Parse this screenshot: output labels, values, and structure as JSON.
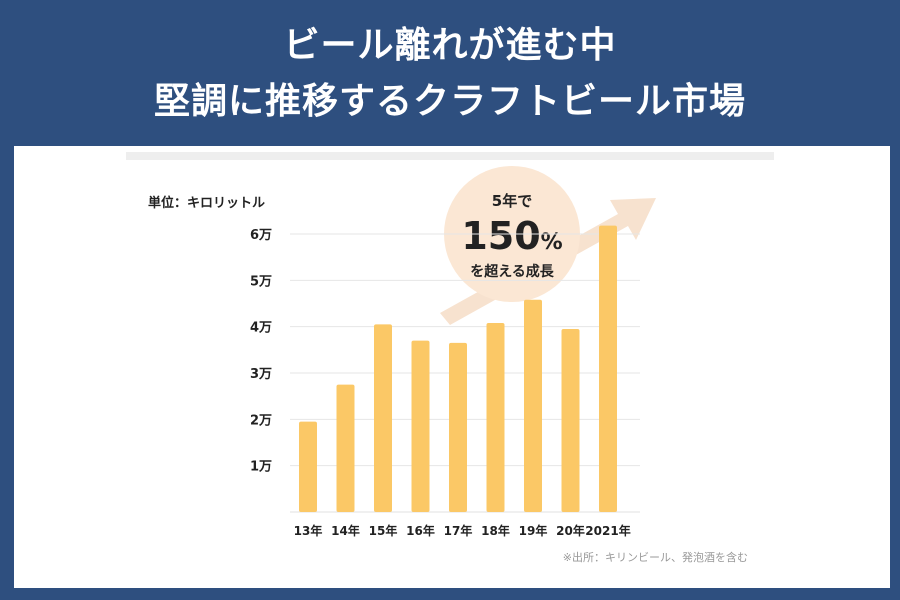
{
  "header": {
    "title_line1": "ビール離れが進む中",
    "title_line2": "堅調に推移するクラフトビール市場"
  },
  "colors": {
    "background": "#2e4f7f",
    "bar": "#fbc866",
    "arrow": "#f7e2cf",
    "bubble": "#fbe7d4",
    "text": "#222222"
  },
  "chart_data": {
    "type": "bar",
    "unit_label": "単位：キロリットル",
    "categories": [
      "13年",
      "14年",
      "15年",
      "16年",
      "17年",
      "18年",
      "19年",
      "20年",
      "2021年"
    ],
    "values": [
      19500,
      27500,
      40500,
      37000,
      36500,
      40800,
      45800,
      39500,
      61800
    ],
    "ylim": [
      0,
      65000
    ],
    "yticks": [
      10000,
      20000,
      30000,
      40000,
      50000,
      60000
    ],
    "ytick_labels": [
      "1万",
      "2万",
      "3万",
      "4万",
      "5万",
      "6万"
    ],
    "grid": true,
    "source_note": "※出所：キリンビール、発泡酒を含む",
    "callout": {
      "line1": "5年で",
      "big": "150",
      "percent": "%",
      "line2": "を超える成長"
    }
  }
}
